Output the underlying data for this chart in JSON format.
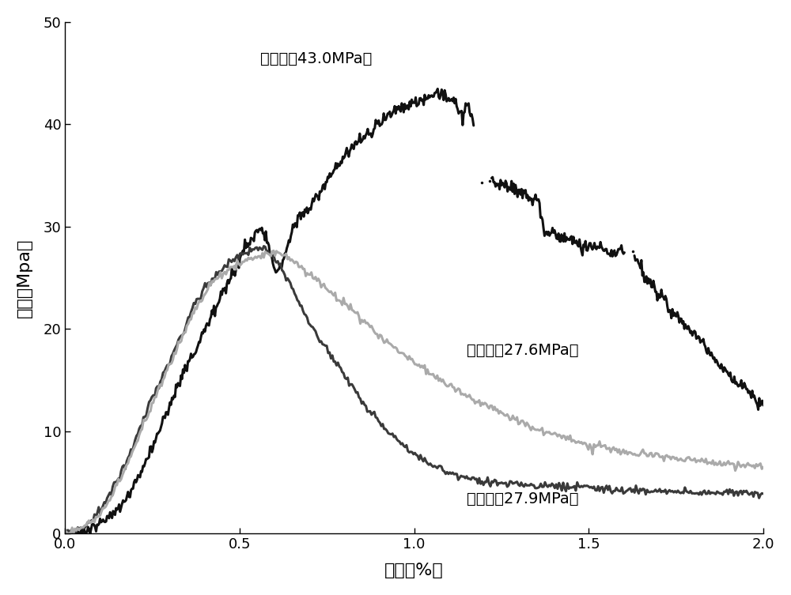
{
  "xlabel": "应变（%）",
  "ylabel": "应力（Mpa）",
  "xlim": [
    0.0,
    2.0
  ],
  "ylim": [
    0,
    50
  ],
  "xticks": [
    0.0,
    0.5,
    1.0,
    1.5,
    2.0
  ],
  "yticks": [
    0,
    10,
    20,
    30,
    40,
    50
  ],
  "label_calcium_acetate": "乙酸钙（43.0MPa）",
  "label_calcium_chloride": "氯化钙（27.6MPa）",
  "label_calcium_nitrate": "硝酸钙（27.9MPa）",
  "color_black": "#111111",
  "color_dark_gray": "#3a3a3a",
  "color_light_gray": "#aaaaaa",
  "background_color": "#ffffff",
  "fig_width": 10.0,
  "fig_height": 7.53,
  "dpi": 100,
  "linewidth": 2.2,
  "font_size_label": 16,
  "font_size_tick": 13,
  "font_size_annot": 14,
  "annot_acetate": [
    0.56,
    46.0
  ],
  "annot_chloride": [
    1.15,
    17.5
  ],
  "annot_nitrate": [
    1.15,
    3.0
  ]
}
